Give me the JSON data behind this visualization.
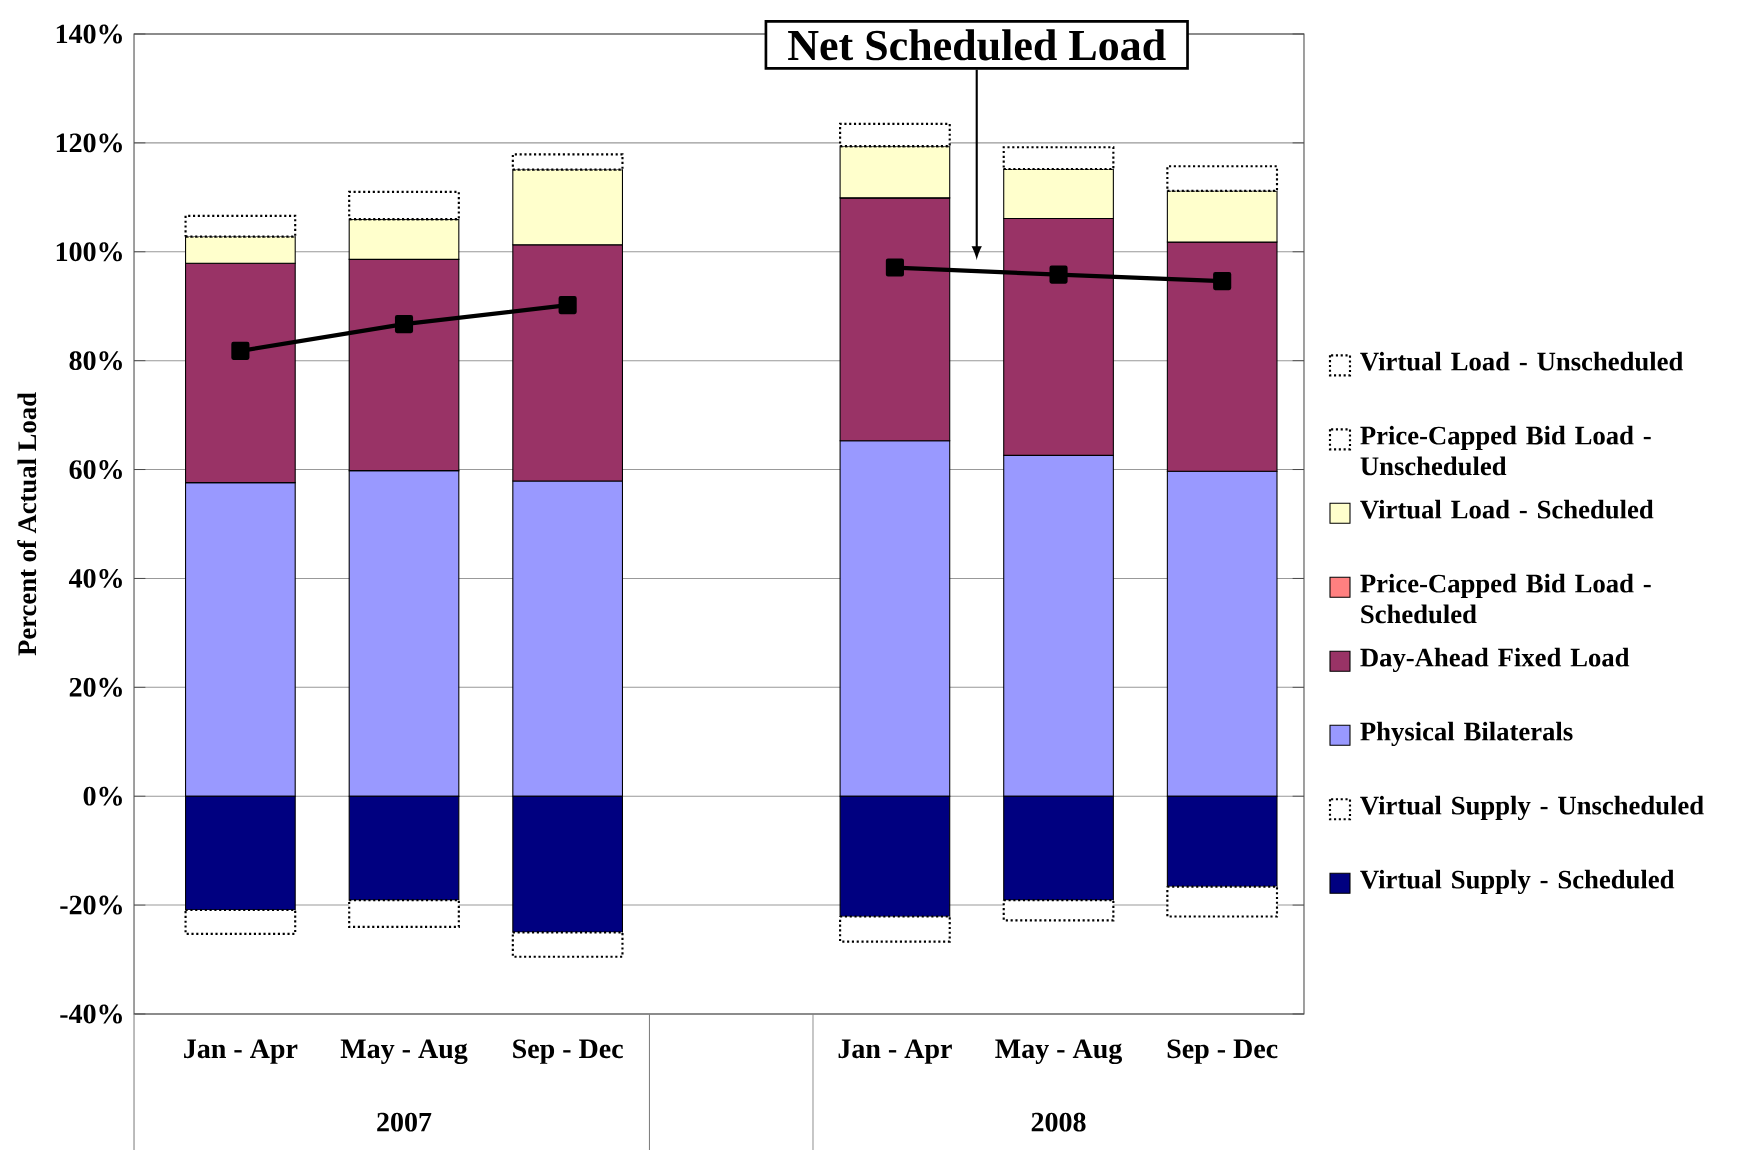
{
  "chart_data": {
    "type": "bar",
    "stacked": true,
    "ylabel": "Percent of Actual Load",
    "categories": [
      "Jan - Apr",
      "May - Aug",
      "Sep - Dec",
      null,
      "Jan - Apr",
      "May - Aug",
      "Sep - Dec"
    ],
    "annotations": [
      "2007",
      "2008"
    ],
    "ylim": [
      -40,
      140
    ],
    "yticks": [
      {
        "value": -40,
        "label": "-40%"
      },
      {
        "value": -20,
        "label": "-20%"
      },
      {
        "value": 0,
        "label": "0%"
      },
      {
        "value": 20,
        "label": "20%"
      },
      {
        "value": 40,
        "label": "40%"
      },
      {
        "value": 60,
        "label": "60%"
      },
      {
        "value": 80,
        "label": "80%"
      },
      {
        "value": 100,
        "label": "100%"
      },
      {
        "value": 120,
        "label": "120%"
      },
      {
        "value": 140,
        "label": "140%"
      }
    ],
    "grid": "y",
    "legend": "right",
    "series": [
      {
        "name": "Physical Bilaterals",
        "color": "#9999ff",
        "values": [
          57.6,
          59.8,
          57.9,
          null,
          65.3,
          62.6,
          59.7
        ]
      },
      {
        "name": "Day-Ahead Fixed Load",
        "color": "#993366",
        "values": [
          40.3,
          38.8,
          43.4,
          null,
          44.6,
          43.5,
          42.1
        ]
      },
      {
        "name": "Price-Capped Bid Load - Scheduled",
        "color": "#ff8080",
        "values": [
          0,
          0,
          0,
          null,
          0,
          0,
          0
        ]
      },
      {
        "name": "Virtual Load - Scheduled",
        "color": "#ffffcc",
        "values": [
          4.9,
          7.4,
          13.8,
          null,
          9.5,
          9.1,
          9.4
        ]
      },
      {
        "name": "Price-Capped Bid Load - Unscheduled",
        "color": "#ffffff",
        "line_style": "dotted",
        "values": [
          0,
          0,
          0,
          null,
          0,
          0,
          0
        ]
      },
      {
        "name": "Virtual Load - Unscheduled",
        "color": "#ffffff",
        "line_style": "dotted",
        "values": [
          3.8,
          5.0,
          2.8,
          null,
          4.1,
          4.0,
          4.5
        ]
      },
      {
        "name": "Virtual Supply - Scheduled",
        "color": "#000080",
        "values": [
          -20.9,
          -19.1,
          -25.0,
          null,
          -22.1,
          -19.1,
          -16.6
        ]
      },
      {
        "name": "Virtual Supply - Unscheduled",
        "color": "#ffffff",
        "line_style": "dotted",
        "values": [
          -4.4,
          -4.9,
          -4.5,
          null,
          -4.6,
          -3.7,
          -5.5
        ]
      },
      {
        "name": "Net Scheduled Load",
        "type": "line",
        "color": "#000000",
        "marker": "square",
        "values": [
          81.8,
          86.7,
          90.2,
          null,
          97.1,
          95.8,
          94.6
        ]
      }
    ]
  }
}
